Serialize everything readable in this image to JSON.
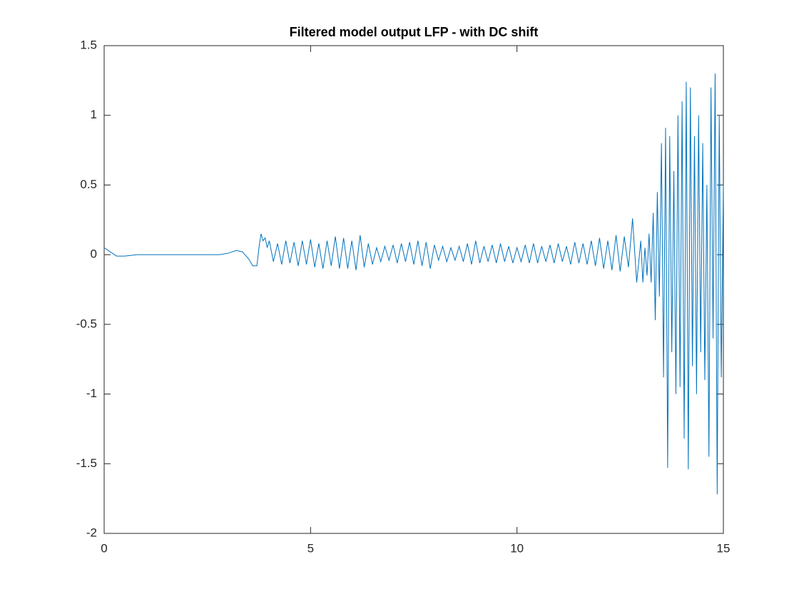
{
  "chart_data": {
    "type": "line",
    "title": "Filtered model output LFP - with DC shift",
    "color": "#0072bd",
    "xlim": [
      0,
      15
    ],
    "ylim": [
      -2,
      1.5
    ],
    "xticks": [
      0,
      5,
      10,
      15
    ],
    "yticks": [
      -2,
      -1.5,
      -1,
      -0.5,
      0,
      0.5,
      1,
      1.5
    ],
    "grid": false,
    "x": [
      0,
      0.1,
      0.2,
      0.3,
      0.5,
      0.8,
      1.0,
      1.5,
      2.0,
      2.5,
      2.8,
      3.0,
      3.2,
      3.35,
      3.5,
      3.6,
      3.7,
      3.75,
      3.8,
      3.85,
      3.9,
      3.95,
      4.0,
      4.1,
      4.2,
      4.3,
      4.4,
      4.5,
      4.6,
      4.7,
      4.8,
      4.9,
      5.0,
      5.1,
      5.2,
      5.3,
      5.4,
      5.5,
      5.6,
      5.7,
      5.8,
      5.9,
      6.0,
      6.1,
      6.2,
      6.3,
      6.4,
      6.5,
      6.6,
      6.7,
      6.8,
      6.9,
      7.0,
      7.1,
      7.2,
      7.3,
      7.4,
      7.5,
      7.6,
      7.7,
      7.8,
      7.9,
      8.0,
      8.1,
      8.2,
      8.3,
      8.4,
      8.5,
      8.6,
      8.7,
      8.8,
      8.9,
      9.0,
      9.1,
      9.2,
      9.3,
      9.4,
      9.5,
      9.6,
      9.7,
      9.8,
      9.9,
      10.0,
      10.1,
      10.2,
      10.3,
      10.4,
      10.5,
      10.6,
      10.7,
      10.8,
      10.9,
      11.0,
      11.1,
      11.2,
      11.3,
      11.4,
      11.5,
      11.6,
      11.7,
      11.8,
      11.9,
      12.0,
      12.1,
      12.2,
      12.3,
      12.4,
      12.5,
      12.6,
      12.7,
      12.8,
      12.9,
      13.0,
      13.05,
      13.1,
      13.15,
      13.2,
      13.25,
      13.3,
      13.35,
      13.4,
      13.45,
      13.5,
      13.55,
      13.6,
      13.65,
      13.7,
      13.75,
      13.8,
      13.85,
      13.9,
      13.95,
      14.0,
      14.05,
      14.1,
      14.15,
      14.2,
      14.25,
      14.3,
      14.35,
      14.4,
      14.45,
      14.5,
      14.55,
      14.6,
      14.65,
      14.7,
      14.75,
      14.8,
      14.85,
      14.9,
      14.95,
      15.0
    ],
    "values": [
      0.05,
      0.03,
      0.01,
      -0.01,
      -0.01,
      0.0,
      0.0,
      0.0,
      0.0,
      0.0,
      0.0,
      0.01,
      0.03,
      0.02,
      -0.03,
      -0.08,
      -0.08,
      0.05,
      0.15,
      0.1,
      0.12,
      0.05,
      0.1,
      -0.05,
      0.08,
      -0.07,
      0.1,
      -0.06,
      0.09,
      -0.08,
      0.1,
      -0.07,
      0.11,
      -0.09,
      0.08,
      -0.1,
      0.1,
      -0.08,
      0.13,
      -0.1,
      0.12,
      -0.1,
      0.1,
      -0.11,
      0.14,
      -0.09,
      0.08,
      -0.07,
      0.05,
      -0.05,
      0.06,
      -0.04,
      0.07,
      -0.06,
      0.08,
      -0.05,
      0.09,
      -0.07,
      0.1,
      -0.08,
      0.09,
      -0.1,
      0.07,
      -0.04,
      0.06,
      -0.05,
      0.05,
      -0.04,
      0.06,
      -0.05,
      0.08,
      -0.07,
      0.1,
      -0.06,
      0.06,
      -0.05,
      0.07,
      -0.06,
      0.08,
      -0.05,
      0.06,
      -0.06,
      0.05,
      -0.05,
      0.07,
      -0.06,
      0.08,
      -0.06,
      0.06,
      -0.05,
      0.07,
      -0.06,
      0.08,
      -0.05,
      0.06,
      -0.07,
      0.09,
      -0.06,
      0.08,
      -0.07,
      0.1,
      -0.08,
      0.12,
      -0.1,
      0.1,
      -0.11,
      0.14,
      -0.12,
      0.13,
      -0.09,
      0.26,
      -0.2,
      0.1,
      -0.2,
      0.05,
      -0.15,
      0.15,
      -0.2,
      0.3,
      -0.47,
      0.45,
      -0.3,
      0.8,
      -0.88,
      0.91,
      -1.53,
      0.85,
      -0.7,
      0.6,
      -1.0,
      1.0,
      -0.95,
      1.1,
      -1.32,
      1.24,
      -1.54,
      1.2,
      -0.8,
      0.85,
      -1.0,
      1.0,
      -0.7,
      0.8,
      -0.9,
      0.5,
      -1.45,
      1.2,
      -0.6,
      1.3,
      -1.72,
      1.0,
      -0.88,
      0.5
    ]
  }
}
